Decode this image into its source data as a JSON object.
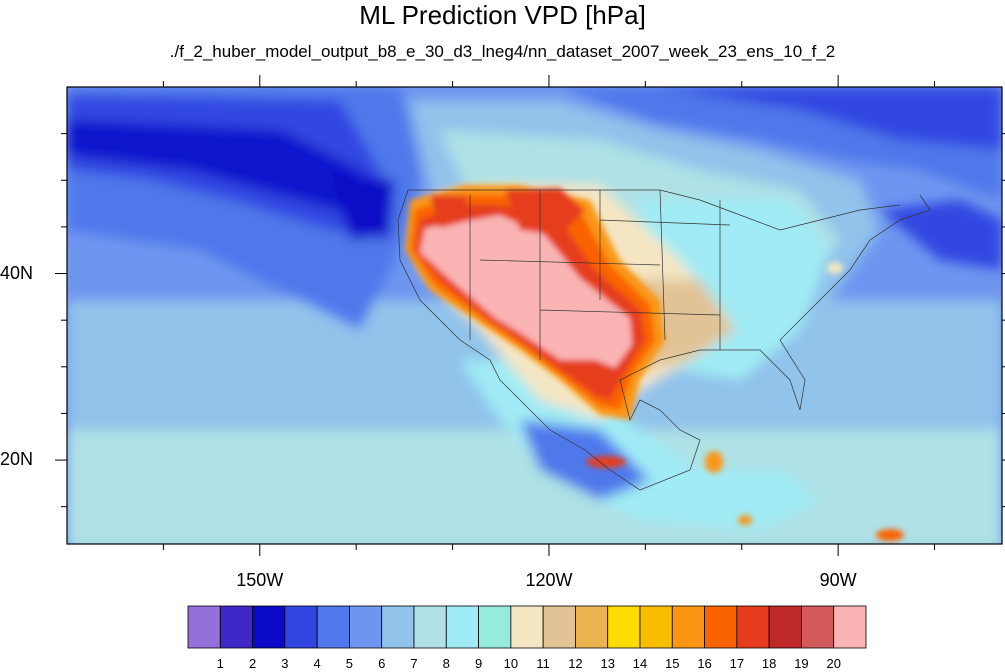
{
  "title": "ML Prediction VPD [hPa]",
  "subtitle": "./f_2_huber_model_output_b8_e_30_d3_lneg4/nn_dataset_2007_week_23_ens_10_f_2",
  "map": {
    "lon_range": [
      -170,
      -73
    ],
    "lat_range": [
      11,
      60
    ],
    "lon_labels": [
      "150W",
      "120W",
      "90W"
    ],
    "lat_labels": [
      "40N",
      "20N"
    ]
  },
  "colorbar": {
    "labels": [
      "1",
      "2",
      "3",
      "4",
      "5",
      "6",
      "7",
      "8",
      "9",
      "10",
      "11",
      "12",
      "13",
      "14",
      "15",
      "16",
      "17",
      "18",
      "19",
      "20"
    ],
    "colors": [
      "#9470dc",
      "#3e28c8",
      "#0a0ac8",
      "#3246e1",
      "#5078eb",
      "#6e96f0",
      "#91c3eb",
      "#afe1e6",
      "#a0ebf5",
      "#96ebdc",
      "#f5e6c3",
      "#e1c396",
      "#ebb450",
      "#fadc00",
      "#fabe00",
      "#fa9614",
      "#fa6400",
      "#e63c1e",
      "#be2828",
      "#d25a5a",
      "#fab4b4"
    ]
  }
}
